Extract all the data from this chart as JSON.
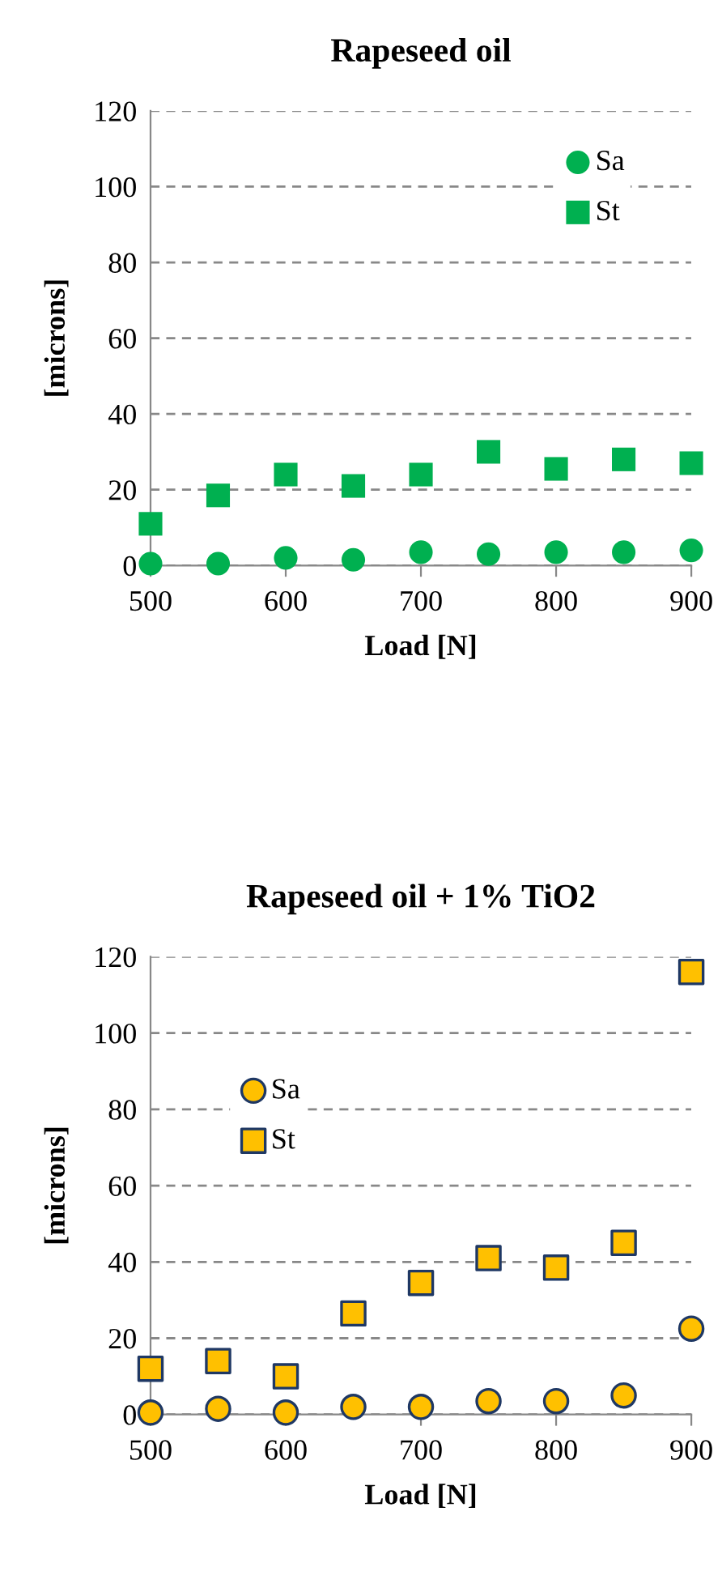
{
  "chart_data": [
    {
      "type": "scatter",
      "title": "Rapeseed oil",
      "xlabel": "Load [N]",
      "ylabel": "[microns]",
      "x": [
        500,
        550,
        600,
        650,
        700,
        750,
        800,
        850,
        900
      ],
      "xlim": [
        500,
        900
      ],
      "xticks": [
        500,
        600,
        700,
        800,
        900
      ],
      "ylim": [
        0,
        120
      ],
      "yticks": [
        0,
        20,
        40,
        60,
        80,
        100,
        120
      ],
      "grid": "y",
      "legend": "top right",
      "series": [
        {
          "name": "Sa",
          "color": "#00b050",
          "marker": "circle",
          "values": [
            0.5,
            0.5,
            2,
            1.5,
            3.5,
            3,
            3.5,
            3.5,
            4
          ]
        },
        {
          "name": "St",
          "color": "#00b050",
          "marker": "square",
          "values": [
            11,
            18.5,
            24,
            21,
            24,
            30,
            25.5,
            28,
            27
          ]
        }
      ]
    },
    {
      "type": "scatter",
      "title": "Rapeseed oil + 1% TiO2",
      "xlabel": "Load [N]",
      "ylabel": "[microns]",
      "x": [
        500,
        550,
        600,
        650,
        700,
        750,
        800,
        850,
        900
      ],
      "xlim": [
        500,
        900
      ],
      "xticks": [
        500,
        600,
        700,
        800,
        900
      ],
      "ylim": [
        0,
        120
      ],
      "yticks": [
        0,
        20,
        40,
        60,
        80,
        100,
        120
      ],
      "grid": "y",
      "legend": "center left",
      "series": [
        {
          "name": "Sa",
          "color": "#ffc000",
          "marker": "circle",
          "values": [
            0.5,
            1.5,
            0.5,
            2,
            2,
            3.5,
            3.5,
            5,
            22.5
          ]
        },
        {
          "name": "St",
          "color": "#ffc000",
          "marker": "square",
          "values": [
            12,
            14,
            10,
            26.5,
            34.5,
            41,
            38.5,
            45,
            116
          ]
        }
      ]
    }
  ]
}
